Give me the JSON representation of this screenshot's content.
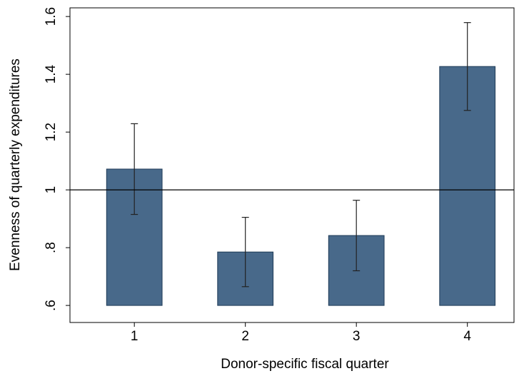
{
  "chart_data": {
    "type": "bar",
    "y_label": "Evenness of quarterly expenditures",
    "x_label": "Donor-specific fiscal quarter",
    "x": [
      1,
      2,
      3,
      4
    ],
    "values": [
      1.072,
      0.785,
      0.842,
      1.427
    ],
    "errors": [
      0.157,
      0.12,
      0.122,
      0.152
    ],
    "color": "#48698a",
    "base": 0.6,
    "reference_line": 1,
    "xlim": [
      0.42,
      4.42
    ],
    "xticks": [
      1,
      2,
      3,
      4
    ],
    "ylim": [
      0.541,
      1.63
    ],
    "yticks": [
      {
        "value": 0.6,
        "label": ".6"
      },
      {
        "value": 0.8,
        "label": ".8"
      },
      1,
      1.2,
      1.4,
      1.6
    ]
  }
}
